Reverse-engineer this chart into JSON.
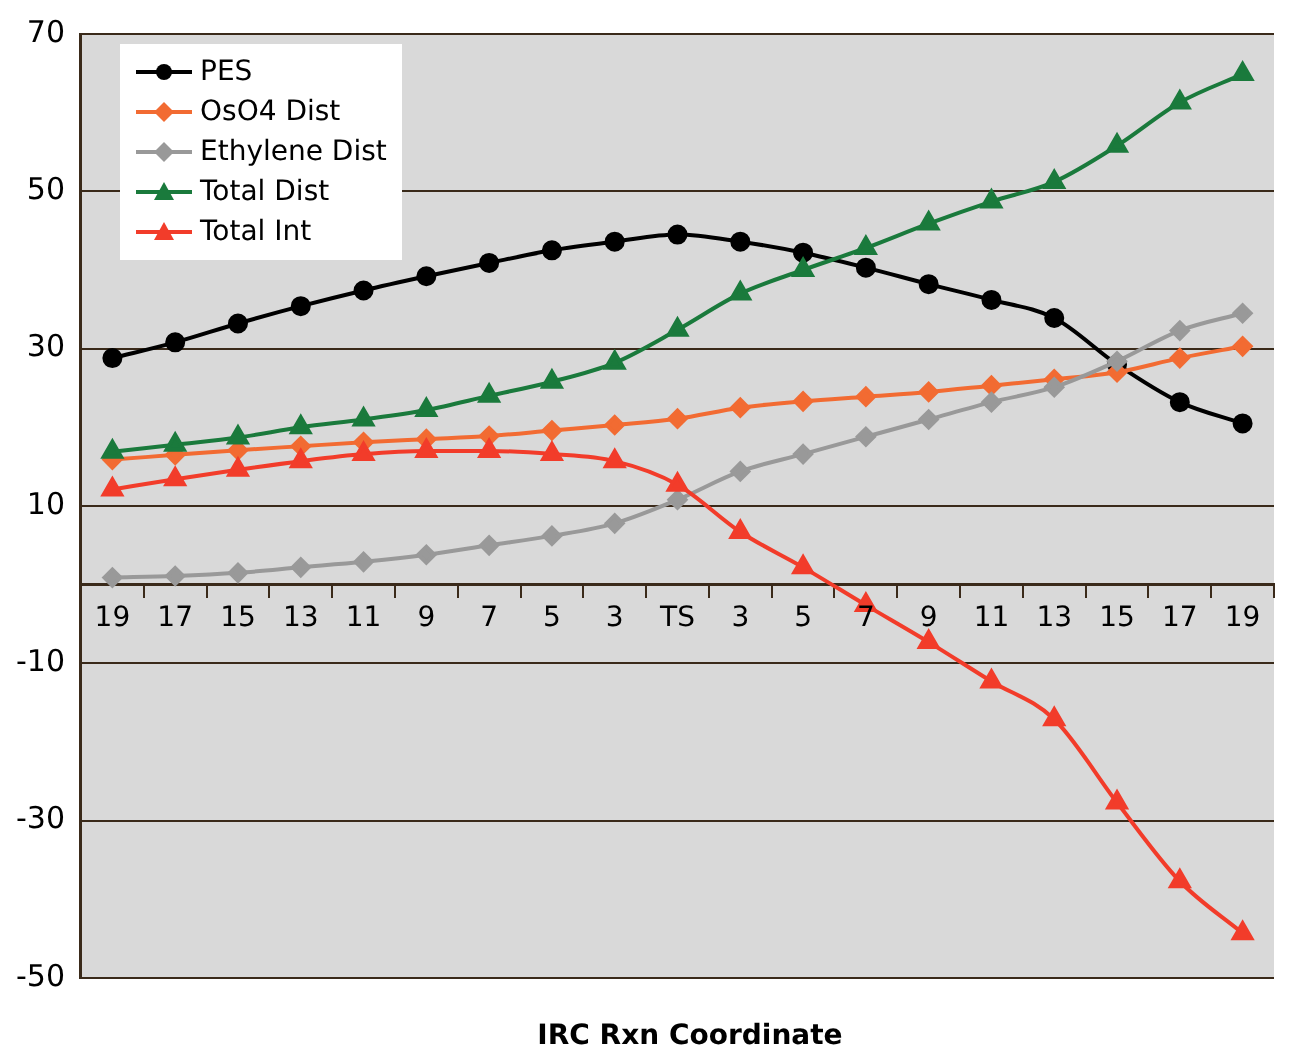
{
  "chart_data": {
    "type": "line",
    "xlabel": "IRC Rxn Coordinate",
    "categories": [
      "19",
      "17",
      "15",
      "13",
      "11",
      "9",
      "7",
      "5",
      "3",
      "TS",
      "3",
      "5",
      "7",
      "9",
      "11",
      "13",
      "15",
      "17",
      "19"
    ],
    "ylim": [
      -50,
      70
    ],
    "yticks": [
      -50,
      -30,
      -10,
      10,
      30,
      50,
      70
    ],
    "grid": "y",
    "legend": "top left",
    "series": [
      {
        "name": "PES",
        "color": "#000000",
        "marker": "circle",
        "values": [
          28.8,
          30.8,
          33.2,
          35.4,
          37.4,
          39.2,
          40.9,
          42.5,
          43.6,
          44.5,
          43.6,
          42.2,
          40.3,
          38.2,
          36.2,
          33.9,
          28,
          23.2,
          20.5
        ]
      },
      {
        "name": "OsO4 Dist",
        "color": "#f26b32",
        "marker": "diamond",
        "values": [
          15.9,
          16.5,
          17.1,
          17.6,
          18.1,
          18.5,
          18.9,
          19.6,
          20.3,
          21.1,
          22.5,
          23.3,
          23.9,
          24.5,
          25.3,
          26.1,
          27,
          28.8,
          30.3
        ]
      },
      {
        "name": "Ethylene Dist",
        "color": "#999999",
        "marker": "diamond",
        "values": [
          0.9,
          1.1,
          1.5,
          2.2,
          2.9,
          3.8,
          5,
          6.2,
          7.8,
          10.8,
          14.4,
          16.6,
          18.8,
          21,
          23.2,
          25.1,
          28.4,
          32.3,
          34.5
        ]
      },
      {
        "name": "Total Dist",
        "color": "#1a7a3c",
        "marker": "triangle",
        "values": [
          16.9,
          17.8,
          18.7,
          20,
          21,
          22.2,
          24,
          25.8,
          28.2,
          32.4,
          37,
          40,
          42.8,
          45.9,
          48.7,
          51.2,
          55.8,
          61.3,
          64.9
        ]
      },
      {
        "name": "Total Int",
        "color": "#f23c2a",
        "marker": "triangle",
        "values": [
          12.1,
          13.4,
          14.6,
          15.7,
          16.6,
          17,
          17,
          16.6,
          15.7,
          12.7,
          6.7,
          2.2,
          -2.6,
          -7.3,
          -12.3,
          -17.1,
          -27.7,
          -37.7,
          -44.3
        ]
      }
    ]
  }
}
